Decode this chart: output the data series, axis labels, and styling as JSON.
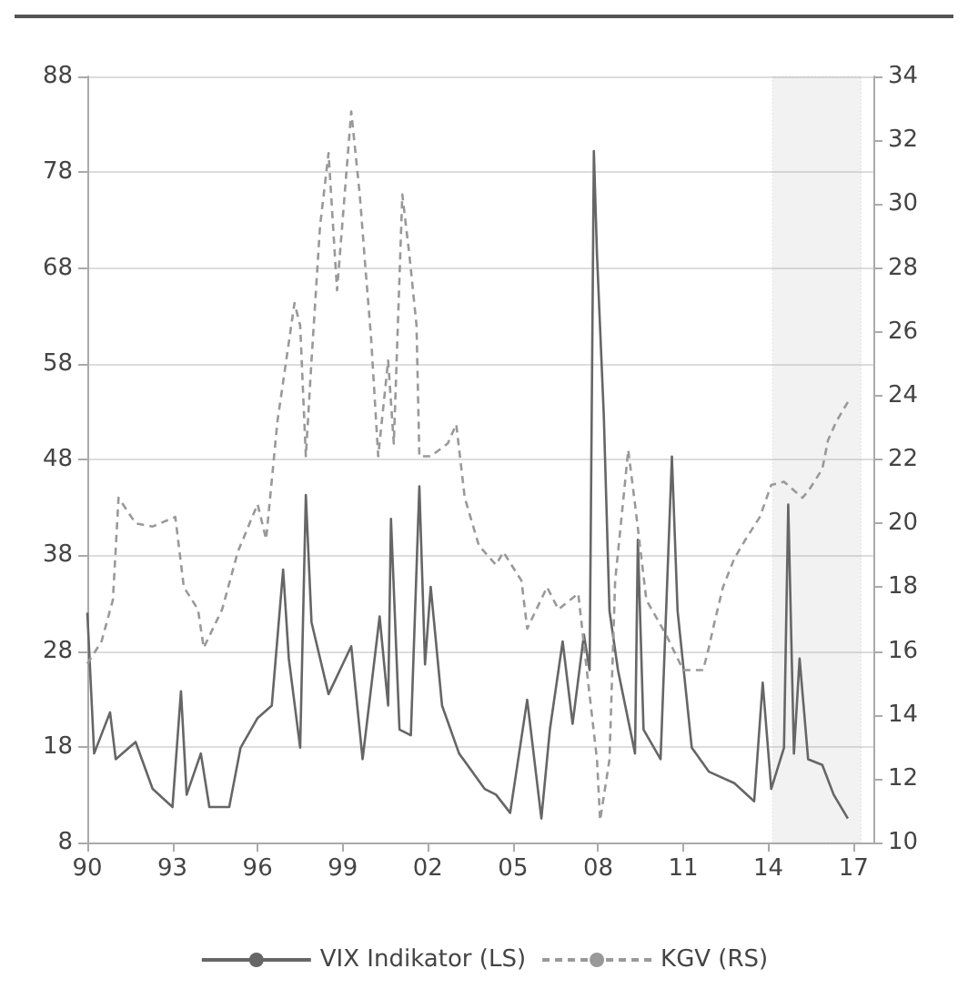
{
  "chart_data": {
    "type": "line",
    "xlim": [
      1990,
      2017.7
    ],
    "xticks": [
      {
        "value": 1990,
        "label": "90"
      },
      {
        "value": 1993,
        "label": "93"
      },
      {
        "value": 1996,
        "label": "96"
      },
      {
        "value": 1999,
        "label": "99"
      },
      {
        "value": 2002,
        "label": "02"
      },
      {
        "value": 2005,
        "label": "05"
      },
      {
        "value": 2008,
        "label": "08"
      },
      {
        "value": 2011,
        "label": "11"
      },
      {
        "value": 2014,
        "label": "14"
      },
      {
        "value": 2017,
        "label": "17"
      }
    ],
    "ylim": [
      8,
      88
    ],
    "yticks": [
      8,
      18,
      28,
      38,
      48,
      58,
      68,
      78,
      88
    ],
    "y2lim": [
      10,
      34
    ],
    "y2ticks": [
      10,
      12,
      14,
      16,
      18,
      20,
      22,
      24,
      26,
      28,
      30,
      32,
      34
    ],
    "grid": "y",
    "legend": "bottom",
    "marker": "none",
    "bands": [
      {
        "axis": "x",
        "from": 2014.15,
        "to": 2017.26,
        "color": "#aaaaaa"
      }
    ],
    "series": [
      {
        "name": "VIX Indikator (LS)",
        "color": "#666666",
        "line_style": "solid",
        "x": [
          1990.0,
          1990.24,
          1990.8,
          1991.0,
          1991.7,
          1992.3,
          1993.0,
          1993.3,
          1993.5,
          1994.0,
          1994.3,
          1995.0,
          1995.4,
          1996.0,
          1996.5,
          1996.9,
          1997.1,
          1997.5,
          1997.7,
          1997.9,
          1998.5,
          1999.3,
          1999.7,
          2000.3,
          2000.6,
          2000.7,
          2001.0,
          2001.4,
          2001.7,
          2001.9,
          2002.1,
          2002.5,
          2003.1,
          2004.0,
          2004.4,
          2004.9,
          2005.5,
          2006.0,
          2006.3,
          2006.75,
          2007.1,
          2007.5,
          2007.7,
          2007.85,
          2007.96,
          2008.2,
          2008.4,
          2008.7,
          2009.3,
          2009.4,
          2009.6,
          2010.2,
          2010.6,
          2010.8,
          2011.3,
          2011.9,
          2012.8,
          2013.5,
          2013.8,
          2014.1,
          2014.55,
          2014.7,
          2014.9,
          2015.1,
          2015.4,
          2015.9,
          2016.3,
          2016.8
        ],
        "values": [
          32,
          17.3,
          21.6,
          16.7,
          18.5,
          13.6,
          11.7,
          23.8,
          13,
          17.3,
          11.7,
          11.7,
          17.9,
          21,
          22.3,
          36.5,
          27.2,
          17.9,
          44.3,
          31,
          23.5,
          28.5,
          16.7,
          31.6,
          22.3,
          41.8,
          19.8,
          19.2,
          45.2,
          26.6,
          34.7,
          22.3,
          17.3,
          13.6,
          13,
          11.1,
          22.9,
          10.5,
          19.8,
          29,
          20.4,
          29.7,
          26,
          80.2,
          69.4,
          52.6,
          32.2,
          26,
          17.3,
          39.6,
          19.8,
          16.7,
          48.3,
          32.2,
          17.9,
          15.4,
          14.2,
          12.3,
          24.7,
          13.6,
          17.9,
          43.3,
          17.3,
          27.2,
          16.7,
          16.1,
          13,
          10.5
        ]
      },
      {
        "name": "KGV (RS)",
        "color": "#999999",
        "line_style": "dashed",
        "axis": "y2",
        "x": [
          1990.0,
          1990.5,
          1990.9,
          1991.1,
          1991.7,
          1992.3,
          1993.1,
          1993.4,
          1993.9,
          1994.1,
          1994.75,
          1995.3,
          1996.0,
          1996.3,
          1996.7,
          1997.3,
          1997.5,
          1997.7,
          1997.9,
          1998.2,
          1998.5,
          1998.8,
          1999.3,
          1999.6,
          1999.8,
          2000.0,
          2000.25,
          2000.6,
          2000.8,
          2001.1,
          2001.35,
          2001.6,
          2001.7,
          2002.1,
          2002.7,
          2003.0,
          2003.3,
          2003.8,
          2004.4,
          2004.66,
          2005.3,
          2005.5,
          2006.2,
          2006.6,
          2007.3,
          2007.6,
          2007.96,
          2008.07,
          2008.4,
          2008.6,
          2008.95,
          2009.06,
          2009.3,
          2009.7,
          2010.4,
          2011.0,
          2011.7,
          2011.9,
          2012.1,
          2012.4,
          2012.8,
          2013.2,
          2013.7,
          2014.1,
          2014.55,
          2015.2,
          2015.4,
          2015.9,
          2016.1,
          2016.4,
          2016.8
        ],
        "values": [
          15.6,
          16.3,
          17.6,
          20.8,
          20,
          19.9,
          20.2,
          18,
          17.3,
          16.1,
          17.3,
          19.1,
          20.6,
          19.5,
          23.2,
          26.9,
          26.2,
          22.1,
          25.1,
          29.3,
          31.6,
          27.3,
          32.9,
          30.3,
          28,
          25.8,
          22.1,
          25.1,
          22.5,
          30.3,
          28.4,
          26.2,
          22.1,
          22.1,
          22.5,
          23.1,
          20.8,
          19.3,
          18.7,
          19.1,
          18.2,
          16.7,
          18,
          17.3,
          17.8,
          15.4,
          12.6,
          10.7,
          12.6,
          18.2,
          21.3,
          22.3,
          20.6,
          17.6,
          16.5,
          15.4,
          15.4,
          16.1,
          16.9,
          18,
          18.9,
          19.5,
          20.2,
          21.2,
          21.3,
          20.8,
          21,
          21.7,
          22.6,
          23.2,
          23.8
        ]
      }
    ]
  }
}
